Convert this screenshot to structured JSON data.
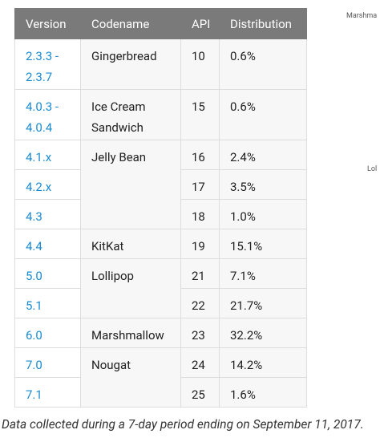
{
  "table": {
    "header": [
      "Version",
      "Codename",
      "API",
      "Distribution"
    ],
    "groups": [
      {
        "codename": "Gingerbread",
        "rows": [
          {
            "version": "2.3.3 - 2.3.7",
            "api": 10,
            "distribution": "0.6%"
          }
        ]
      },
      {
        "codename": "Ice Cream Sandwich",
        "rows": [
          {
            "version": "4.0.3 - 4.0.4",
            "api": 15,
            "distribution": "0.6%"
          }
        ]
      },
      {
        "codename": "Jelly Bean",
        "rows": [
          {
            "version": "4.1.x",
            "api": 16,
            "distribution": "2.4%"
          },
          {
            "version": "4.2.x",
            "api": 17,
            "distribution": "3.5%"
          },
          {
            "version": "4.3",
            "api": 18,
            "distribution": "1.0%"
          }
        ]
      },
      {
        "codename": "KitKat",
        "rows": [
          {
            "version": "4.4",
            "api": 19,
            "distribution": "15.1%"
          }
        ]
      },
      {
        "codename": "Lollipop",
        "rows": [
          {
            "version": "5.0",
            "api": 21,
            "distribution": "7.1%"
          },
          {
            "version": "5.1",
            "api": 22,
            "distribution": "21.7%"
          }
        ]
      },
      {
        "codename": "Marshmallow",
        "rows": [
          {
            "version": "6.0",
            "api": 23,
            "distribution": "32.2%"
          }
        ]
      },
      {
        "codename": "Nougat",
        "rows": [
          {
            "version": "7.0",
            "api": 24,
            "distribution": "14.2%"
          },
          {
            "version": "7.1",
            "api": 25,
            "distribution": "1.6%"
          }
        ]
      }
    ]
  },
  "side_labels": [
    "Marshma",
    "Lol"
  ],
  "caption": "Data collected during a 7-day period ending on September 11, 2017."
}
